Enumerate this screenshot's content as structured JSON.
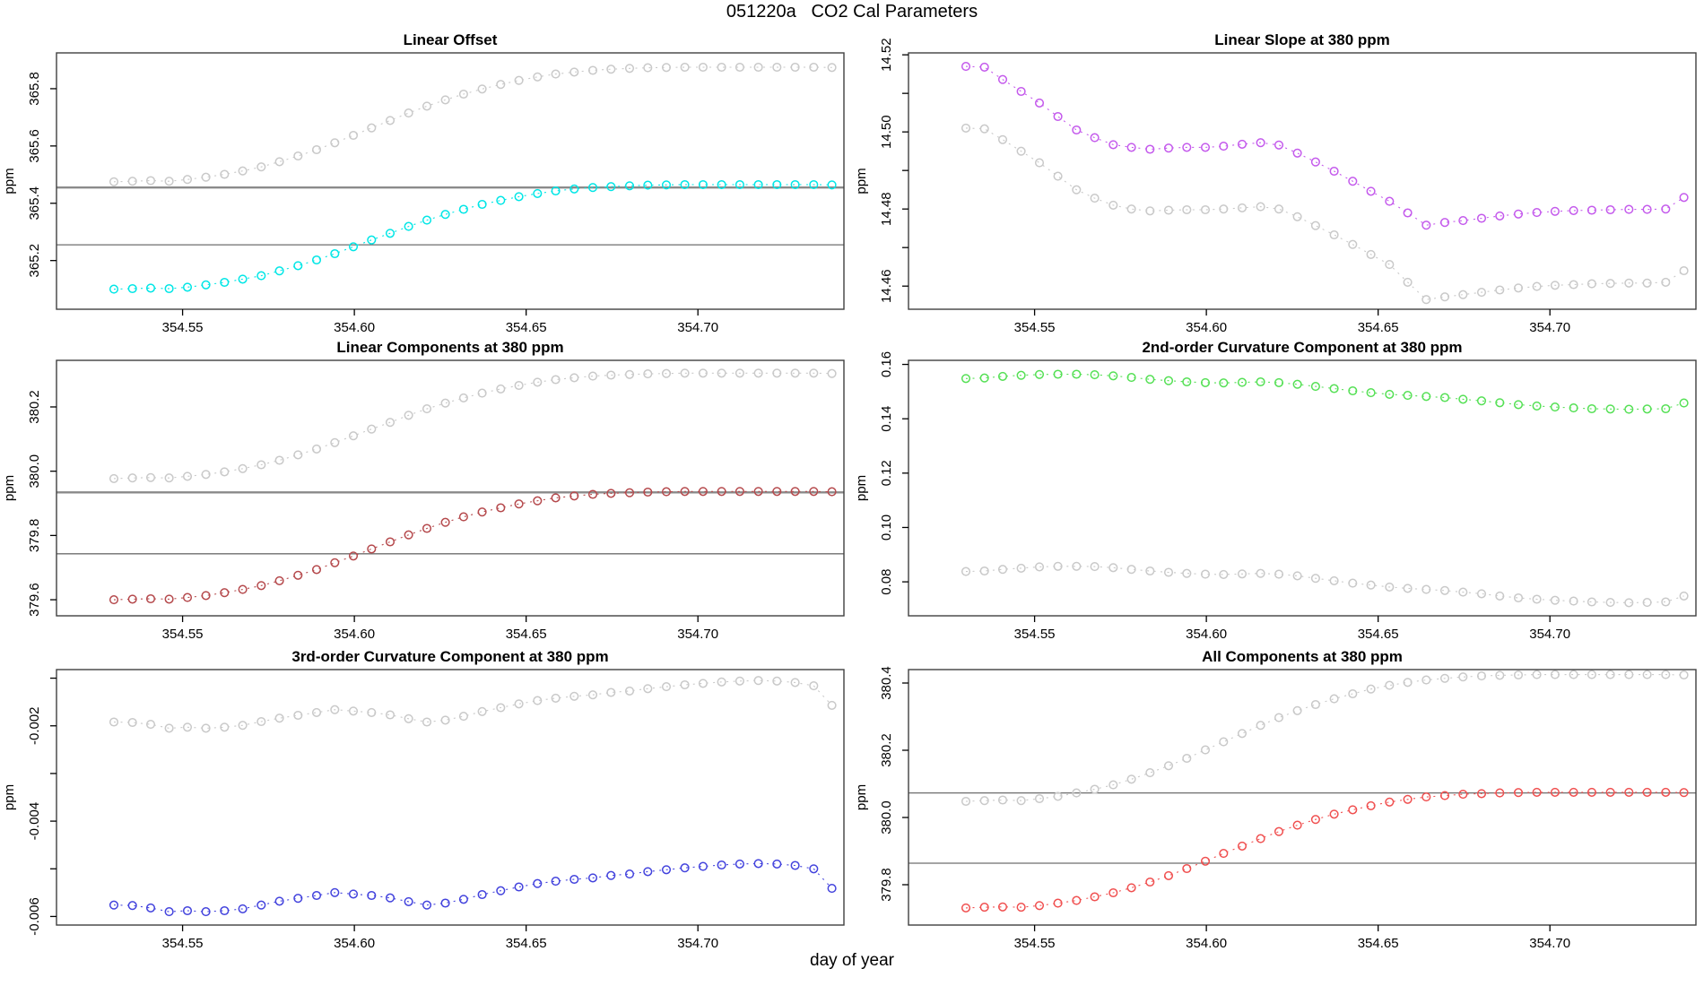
{
  "header": {
    "title": "051220a   CO2 Cal Parameters"
  },
  "x": {
    "label": "day of year",
    "lim": [
      354.5133,
      354.7425
    ],
    "ticks": {
      "values": [
        354.55,
        354.6,
        354.65,
        354.7
      ],
      "labels": [
        "354.55",
        "354.60",
        "354.65",
        "354.70"
      ]
    },
    "values": [
      354.53,
      354.5354,
      354.5407,
      354.5461,
      354.5514,
      354.5568,
      354.5622,
      354.5675,
      354.5729,
      354.5782,
      354.5836,
      354.589,
      354.5943,
      354.5997,
      354.605,
      354.6104,
      354.6158,
      354.6211,
      354.6265,
      354.6318,
      354.6372,
      354.6426,
      354.6479,
      354.6533,
      354.6586,
      354.664,
      354.6694,
      354.6747,
      354.6801,
      354.6854,
      354.6908,
      354.6962,
      354.7015,
      354.7069,
      354.7122,
      354.7176,
      354.723,
      354.7283,
      354.7337,
      354.739
    ]
  },
  "palette": {
    "gray_series": "#c9c9c9",
    "cyan": "#00e6e6",
    "purple": "#c45aec",
    "dark_red": "#b5494c",
    "green": "#55e055",
    "blue": "#4343dd",
    "red": "#f05050",
    "ref_line_thick": "#8a8a8a",
    "ref_line_thin": "#6e6e6e",
    "border": "#404040"
  },
  "chart_data": [
    {
      "type": "scatter",
      "id": "panel-linear-offset",
      "title": "Linear Offset",
      "ylabel": "ppm",
      "ylim": [
        365.03,
        365.925
      ],
      "yticks": {
        "values": [
          365.2,
          365.4,
          365.6,
          365.8
        ],
        "labels": [
          "365.2",
          "365.4",
          "365.6",
          "365.8"
        ],
        "minor": []
      },
      "hlines": [
        {
          "value": 365.455,
          "weight": "thick"
        },
        {
          "value": 365.255,
          "weight": "thin"
        }
      ],
      "series": [
        {
          "name": "reference-gray",
          "color": "#c9c9c9",
          "values": [
            365.475,
            365.477,
            365.479,
            365.477,
            365.483,
            365.491,
            365.501,
            365.513,
            365.527,
            365.545,
            365.565,
            365.587,
            365.611,
            365.637,
            365.663,
            365.689,
            365.715,
            365.739,
            365.761,
            365.781,
            365.799,
            365.815,
            365.829,
            365.841,
            365.851,
            365.858,
            365.864,
            365.868,
            365.871,
            365.873,
            365.874,
            365.875,
            365.875,
            365.875,
            365.875,
            365.875,
            365.875,
            365.875,
            365.875,
            365.874
          ]
        },
        {
          "name": "current-cyan",
          "color": "#00e6e6",
          "values": [
            365.1,
            365.102,
            365.104,
            365.102,
            365.107,
            365.115,
            365.124,
            365.135,
            365.147,
            365.164,
            365.182,
            365.202,
            365.224,
            365.248,
            365.272,
            365.295,
            365.319,
            365.341,
            365.361,
            365.379,
            365.396,
            365.41,
            365.423,
            365.434,
            365.443,
            365.45,
            365.455,
            365.458,
            365.461,
            365.463,
            365.464,
            365.465,
            365.465,
            365.465,
            365.465,
            365.465,
            365.465,
            365.465,
            365.465,
            365.464
          ]
        }
      ]
    },
    {
      "type": "scatter",
      "id": "panel-linear-slope-380",
      "title": "Linear Slope at 380 ppm",
      "ylabel": "ppm",
      "ylim": [
        14.454,
        14.5205
      ],
      "yticks": {
        "values": [
          14.46,
          14.48,
          14.5,
          14.52
        ],
        "labels": [
          "14.46",
          "14.48",
          "14.50",
          "14.52"
        ],
        "minor": [
          14.47,
          14.49,
          14.51
        ]
      },
      "hlines": [],
      "series": [
        {
          "name": "reference-gray",
          "color": "#c9c9c9",
          "values": [
            14.501,
            14.5008,
            14.498,
            14.495,
            14.492,
            14.4885,
            14.485,
            14.4828,
            14.481,
            14.48,
            14.4795,
            14.4797,
            14.4798,
            14.4798,
            14.48,
            14.4803,
            14.4806,
            14.48,
            14.478,
            14.4757,
            14.4733,
            14.4708,
            14.4682,
            14.4656,
            14.461,
            14.4565,
            14.4572,
            14.4578,
            14.4584,
            14.459,
            14.4595,
            14.4599,
            14.4602,
            14.4604,
            14.4606,
            14.4607,
            14.4608,
            14.4608,
            14.461,
            14.464
          ]
        },
        {
          "name": "current-purple",
          "color": "#c45aec",
          "values": [
            14.517,
            14.5168,
            14.5136,
            14.5105,
            14.5075,
            14.504,
            14.5005,
            14.4985,
            14.4967,
            14.496,
            14.4955,
            14.4958,
            14.496,
            14.496,
            14.4963,
            14.4968,
            14.4972,
            14.4966,
            14.4945,
            14.4922,
            14.4898,
            14.4872,
            14.4846,
            14.482,
            14.479,
            14.4758,
            14.4765,
            14.477,
            14.4776,
            14.4782,
            14.4787,
            14.4791,
            14.4794,
            14.4796,
            14.4797,
            14.4798,
            14.4799,
            14.4799,
            14.48,
            14.483
          ]
        }
      ]
    },
    {
      "type": "scatter",
      "id": "panel-linear-components-380",
      "title": "Linear Components at 380 ppm",
      "ylabel": "ppm",
      "ylim": [
        379.55,
        380.345
      ],
      "yticks": {
        "values": [
          379.6,
          379.8,
          380.0,
          380.2
        ],
        "labels": [
          "379.6",
          "379.8",
          "380.0",
          "380.2"
        ],
        "minor": []
      },
      "hlines": [
        {
          "value": 379.934,
          "weight": "thick"
        },
        {
          "value": 379.743,
          "weight": "thin"
        }
      ],
      "series": [
        {
          "name": "reference-gray",
          "color": "#c9c9c9",
          "values": [
            379.977,
            379.979,
            379.98,
            379.979,
            379.984,
            379.99,
            379.998,
            380.008,
            380.02,
            380.034,
            380.051,
            380.069,
            380.089,
            380.11,
            380.131,
            380.152,
            380.174,
            380.194,
            380.212,
            380.228,
            380.243,
            380.256,
            380.267,
            380.277,
            380.285,
            380.291,
            380.296,
            380.299,
            380.301,
            380.303,
            380.304,
            380.305,
            380.305,
            380.305,
            380.305,
            380.305,
            380.305,
            380.305,
            380.305,
            380.304
          ]
        },
        {
          "name": "current-darkred",
          "color": "#b5494c",
          "values": [
            379.6,
            379.602,
            379.603,
            379.602,
            379.607,
            379.613,
            379.622,
            379.632,
            379.644,
            379.659,
            379.676,
            379.694,
            379.715,
            379.736,
            379.758,
            379.78,
            379.802,
            379.822,
            379.841,
            379.858,
            379.873,
            379.886,
            379.898,
            379.908,
            379.917,
            379.923,
            379.928,
            379.931,
            379.933,
            379.935,
            379.936,
            379.937,
            379.937,
            379.937,
            379.937,
            379.937,
            379.937,
            379.937,
            379.937,
            379.936
          ]
        }
      ]
    },
    {
      "type": "scatter",
      "id": "panel-2nd-order-curvature-380",
      "title": "2nd-order Curvature Component at 380 ppm",
      "ylabel": "ppm",
      "ylim": [
        0.0675,
        0.1615
      ],
      "yticks": {
        "values": [
          0.08,
          0.1,
          0.12,
          0.14,
          0.16
        ],
        "labels": [
          "0.08",
          "0.10",
          "0.12",
          "0.14",
          "0.16"
        ],
        "minor": []
      },
      "hlines": [],
      "series": [
        {
          "name": "reference-gray",
          "color": "#c9c9c9",
          "values": [
            0.0838,
            0.084,
            0.0846,
            0.085,
            0.0855,
            0.0857,
            0.0857,
            0.0856,
            0.0852,
            0.0846,
            0.084,
            0.0835,
            0.0831,
            0.0828,
            0.0827,
            0.0829,
            0.0831,
            0.0828,
            0.0822,
            0.0813,
            0.0804,
            0.0795,
            0.0788,
            0.0781,
            0.0776,
            0.0772,
            0.0768,
            0.0762,
            0.0756,
            0.0748,
            0.0741,
            0.0736,
            0.0732,
            0.0729,
            0.0726,
            0.0724,
            0.0723,
            0.0724,
            0.0726,
            0.0748
          ]
        },
        {
          "name": "current-green",
          "color": "#55e055",
          "values": [
            0.1548,
            0.155,
            0.1556,
            0.156,
            0.1563,
            0.1564,
            0.1564,
            0.1562,
            0.1558,
            0.1552,
            0.1545,
            0.154,
            0.1536,
            0.1533,
            0.1532,
            0.1534,
            0.1536,
            0.1533,
            0.1527,
            0.1519,
            0.1511,
            0.1503,
            0.1496,
            0.149,
            0.1486,
            0.1482,
            0.1478,
            0.1472,
            0.1466,
            0.1459,
            0.1452,
            0.1447,
            0.1443,
            0.144,
            0.1437,
            0.1436,
            0.1435,
            0.1436,
            0.1437,
            0.1458
          ]
        }
      ]
    },
    {
      "type": "scatter",
      "id": "panel-3rd-order-curvature-380",
      "title": "3rd-order Curvature Component at 380 ppm",
      "ylabel": "ppm",
      "ylim": [
        -0.00618,
        -0.00082
      ],
      "yticks": {
        "values": [
          -0.006,
          -0.004,
          -0.002
        ],
        "labels": [
          "-0.006",
          "-0.004",
          "-0.002"
        ],
        "minor": [
          -0.005,
          -0.003,
          -0.001
        ]
      },
      "hlines": [],
      "series": [
        {
          "name": "reference-gray",
          "color": "#c9c9c9",
          "values": [
            -0.00192,
            -0.00193,
            -0.00197,
            -0.00205,
            -0.00203,
            -0.00205,
            -0.00203,
            -0.00199,
            -0.00191,
            -0.00184,
            -0.00178,
            -0.00172,
            -0.00166,
            -0.00169,
            -0.00172,
            -0.00177,
            -0.00185,
            -0.00192,
            -0.00188,
            -0.0018,
            -0.0017,
            -0.00162,
            -0.00154,
            -0.00147,
            -0.00142,
            -0.00138,
            -0.00135,
            -0.0013,
            -0.00127,
            -0.00122,
            -0.00118,
            -0.00114,
            -0.00111,
            -0.00108,
            -0.00106,
            -0.00105,
            -0.00106,
            -0.00109,
            -0.00116,
            -0.00157
          ]
        },
        {
          "name": "current-blue",
          "color": "#4343dd",
          "values": [
            -0.00576,
            -0.00577,
            -0.00582,
            -0.0059,
            -0.00588,
            -0.0059,
            -0.00588,
            -0.00584,
            -0.00576,
            -0.00568,
            -0.00562,
            -0.00556,
            -0.0055,
            -0.00553,
            -0.00556,
            -0.00561,
            -0.00569,
            -0.00576,
            -0.00572,
            -0.00564,
            -0.00554,
            -0.00546,
            -0.00538,
            -0.00531,
            -0.00526,
            -0.00522,
            -0.00519,
            -0.00514,
            -0.00511,
            -0.00506,
            -0.00502,
            -0.00498,
            -0.00495,
            -0.00492,
            -0.0049,
            -0.00489,
            -0.0049,
            -0.00493,
            -0.005,
            -0.00541
          ]
        }
      ]
    },
    {
      "type": "scatter",
      "id": "panel-all-components-380",
      "title": "All Components at 380 ppm",
      "ylabel": "ppm",
      "ylim": [
        379.68,
        380.44
      ],
      "yticks": {
        "values": [
          379.8,
          380.0,
          380.2,
          380.4
        ],
        "labels": [
          "379.8",
          "380.0",
          "380.2",
          "380.4"
        ],
        "minor": []
      },
      "hlines": [
        {
          "value": 380.073,
          "weight": "thin"
        },
        {
          "value": 379.864,
          "weight": "thin"
        }
      ],
      "series": [
        {
          "name": "reference-gray",
          "color": "#c9c9c9",
          "values": [
            380.048,
            380.05,
            380.052,
            380.05,
            380.056,
            380.063,
            380.073,
            380.084,
            380.097,
            380.114,
            380.133,
            380.154,
            380.176,
            380.201,
            380.225,
            380.25,
            380.274,
            380.297,
            380.318,
            380.336,
            380.353,
            380.368,
            380.382,
            380.393,
            380.402,
            380.409,
            380.414,
            380.418,
            380.421,
            380.423,
            380.424,
            380.425,
            380.425,
            380.425,
            380.425,
            380.425,
            380.425,
            380.425,
            380.425,
            380.424
          ]
        },
        {
          "name": "current-red",
          "color": "#f05050",
          "values": [
            379.731,
            379.733,
            379.734,
            379.733,
            379.738,
            379.745,
            379.753,
            379.764,
            379.776,
            379.791,
            379.808,
            379.827,
            379.848,
            379.87,
            379.893,
            379.915,
            379.937,
            379.958,
            379.977,
            379.994,
            380.01,
            380.023,
            380.035,
            380.046,
            380.054,
            380.061,
            380.065,
            380.069,
            380.071,
            380.073,
            380.074,
            380.075,
            380.075,
            380.075,
            380.075,
            380.075,
            380.075,
            380.075,
            380.075,
            380.074
          ]
        }
      ]
    }
  ]
}
